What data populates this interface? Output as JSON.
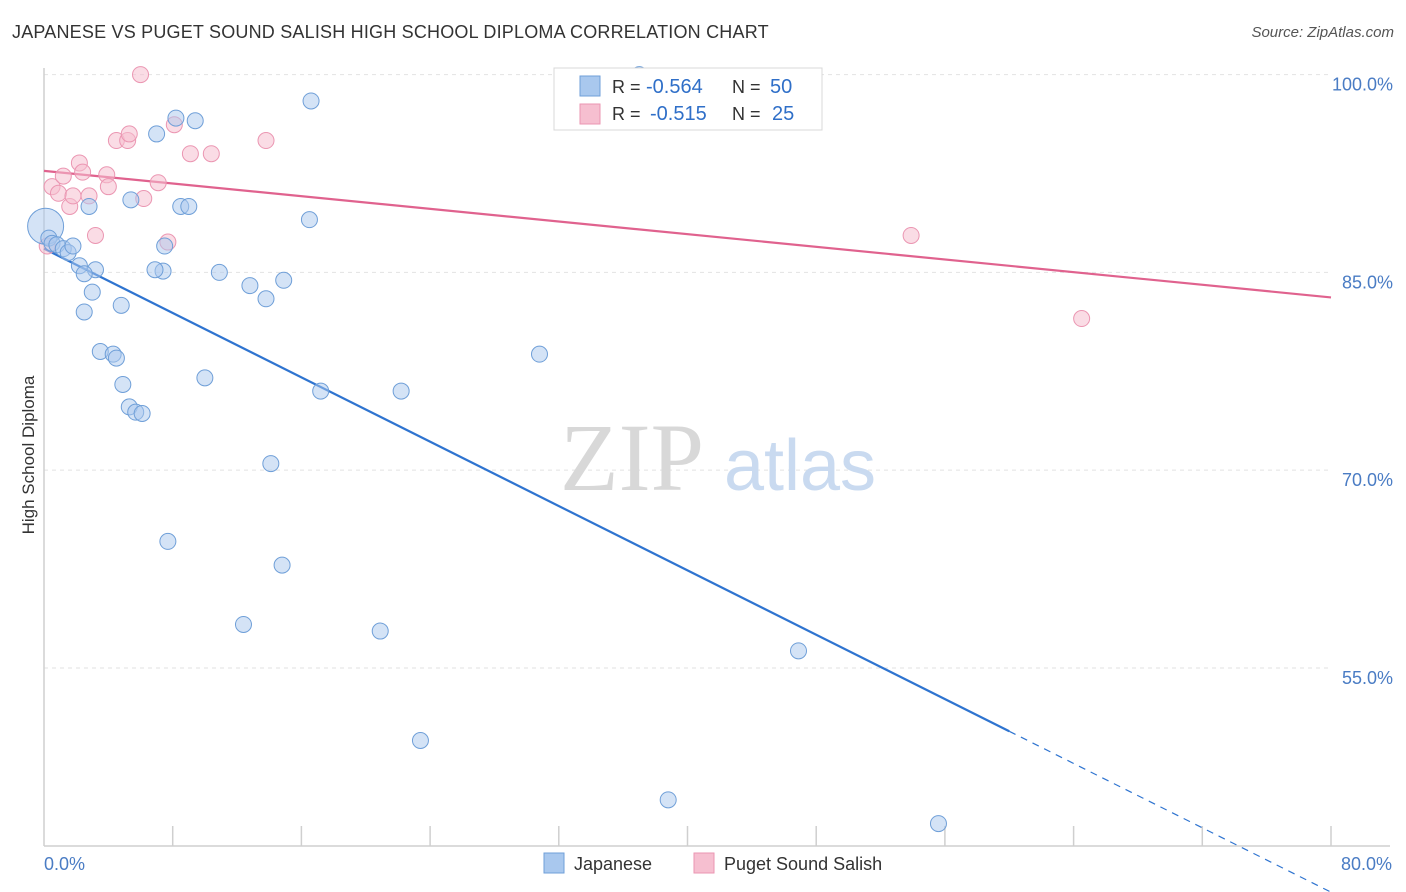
{
  "title": "JAPANESE VS PUGET SOUND SALISH HIGH SCHOOL DIPLOMA CORRELATION CHART",
  "source": "Source: ZipAtlas.com",
  "watermark": {
    "zip": "ZIP",
    "atlas": "atlas"
  },
  "colors": {
    "japanese_fill": "#a9c8ee",
    "japanese_stroke": "#6f9fd8",
    "japanese_line": "#2f74d0",
    "salish_fill": "#f6bfd0",
    "salish_stroke": "#eb96b2",
    "salish_line": "#e0628e",
    "axis_label": "#4a7cc4",
    "grid": "#e2e2e2"
  },
  "legend": {
    "rows": [
      {
        "r_label": "R =",
        "r_value": "-0.564",
        "n_label": "N =",
        "n_value": "50"
      },
      {
        "r_label": "R =",
        "r_value": "-0.515",
        "n_label": "N =",
        "n_value": "25"
      }
    ]
  },
  "chart_data": {
    "type": "scatter",
    "title": "JAPANESE VS PUGET SOUND SALISH HIGH SCHOOL DIPLOMA CORRELATION CHART",
    "xlabel": "",
    "ylabel": "High School Diploma",
    "xlim": [
      0,
      80
    ],
    "ylim": [
      41.5,
      100.5
    ],
    "x_tick_labels": [
      "0.0%",
      "80.0%"
    ],
    "y_ticks": [
      100,
      85,
      70,
      55
    ],
    "y_tick_labels": [
      "100.0%",
      "85.0%",
      "70.0%",
      "55.0%"
    ],
    "grid": true,
    "legend_position": "top-center",
    "series": [
      {
        "name": "Japanese",
        "color": "#a9c8ee",
        "points": [
          [
            0.1,
            88.5
          ],
          [
            0.3,
            87.6
          ],
          [
            0.5,
            87.2
          ],
          [
            0.8,
            87.1
          ],
          [
            1.2,
            86.8
          ],
          [
            1.5,
            86.5
          ],
          [
            1.8,
            87.0
          ],
          [
            2.2,
            85.5
          ],
          [
            3.2,
            85.2
          ],
          [
            2.5,
            84.9
          ],
          [
            3.0,
            83.5
          ],
          [
            2.5,
            82.0
          ],
          [
            4.8,
            82.5
          ],
          [
            3.5,
            79.0
          ],
          [
            4.3,
            78.8
          ],
          [
            4.5,
            78.5
          ],
          [
            4.9,
            76.5
          ],
          [
            5.3,
            74.8
          ],
          [
            5.7,
            74.4
          ],
          [
            6.1,
            74.3
          ],
          [
            2.8,
            90.0
          ],
          [
            5.4,
            90.5
          ],
          [
            7.0,
            95.5
          ],
          [
            8.2,
            96.7
          ],
          [
            9.4,
            96.5
          ],
          [
            8.5,
            90.0
          ],
          [
            9.0,
            90.0
          ],
          [
            7.4,
            85.1
          ],
          [
            6.9,
            85.2
          ],
          [
            7.5,
            87.0
          ],
          [
            10.9,
            85.0
          ],
          [
            12.8,
            84.0
          ],
          [
            13.8,
            83.0
          ],
          [
            14.9,
            84.4
          ],
          [
            16.5,
            89.0
          ],
          [
            16.6,
            98.0
          ],
          [
            10.0,
            77.0
          ],
          [
            17.2,
            76.0
          ],
          [
            22.2,
            76.0
          ],
          [
            30.8,
            78.8
          ],
          [
            14.1,
            70.5
          ],
          [
            7.7,
            64.6
          ],
          [
            14.8,
            62.8
          ],
          [
            12.4,
            58.3
          ],
          [
            20.9,
            57.8
          ],
          [
            23.4,
            49.5
          ],
          [
            46.9,
            56.3
          ],
          [
            38.8,
            45.0
          ],
          [
            55.6,
            43.2
          ],
          [
            37.0,
            100.0
          ]
        ],
        "trend": {
          "x": [
            0,
            60
          ],
          "y": [
            86.8,
            50.2
          ],
          "dashed_to": [
            80,
            38.0
          ]
        }
      },
      {
        "name": "Puget Sound Salish",
        "color": "#f6bfd0",
        "points": [
          [
            0.2,
            87.0
          ],
          [
            0.5,
            91.5
          ],
          [
            0.9,
            91.0
          ],
          [
            1.2,
            92.3
          ],
          [
            1.6,
            90.0
          ],
          [
            1.8,
            90.8
          ],
          [
            2.2,
            93.3
          ],
          [
            2.4,
            92.6
          ],
          [
            2.8,
            90.8
          ],
          [
            3.2,
            87.8
          ],
          [
            3.9,
            92.4
          ],
          [
            4.0,
            91.5
          ],
          [
            4.5,
            95.0
          ],
          [
            5.2,
            95.0
          ],
          [
            5.3,
            95.5
          ],
          [
            6.2,
            90.6
          ],
          [
            6.0,
            100.0
          ],
          [
            7.1,
            91.8
          ],
          [
            7.7,
            87.3
          ],
          [
            8.1,
            96.2
          ],
          [
            9.1,
            94.0
          ],
          [
            10.4,
            94.0
          ],
          [
            13.8,
            95.0
          ],
          [
            53.9,
            87.8
          ],
          [
            64.5,
            81.5
          ]
        ],
        "trend": {
          "x": [
            0,
            80
          ],
          "y": [
            92.7,
            83.1
          ]
        }
      }
    ]
  }
}
